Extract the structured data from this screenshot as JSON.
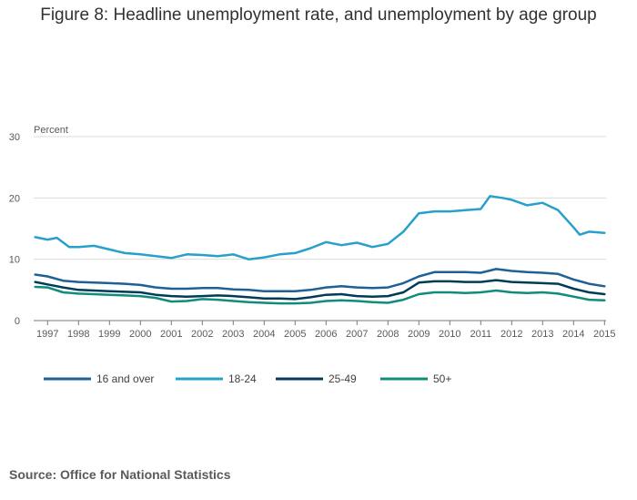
{
  "title": "Figure 8: Headline unemployment rate, and unemployment by age group",
  "source": "Source: Office for National Statistics",
  "chart_data": {
    "type": "line",
    "title": "Figure 8: Headline unemployment rate, and unemployment by age group",
    "ylabel": "Percent",
    "xlabel": "",
    "ylim": [
      0,
      30
    ],
    "xlim": [
      1996.55,
      2015.05
    ],
    "yticks": [
      0,
      10,
      20,
      30
    ],
    "xticks": [
      "1997",
      "1998",
      "1999",
      "2000",
      "2001",
      "2002",
      "2003",
      "2004",
      "2005",
      "2006",
      "2007",
      "2008",
      "2009",
      "2010",
      "2011",
      "2012",
      "2013",
      "2014",
      "2015"
    ],
    "grid": "horizontal",
    "legend_position": "bottom-left",
    "series": [
      {
        "name": "16 and over",
        "color": "#206095",
        "x": [
          1996.6,
          1997.0,
          1997.5,
          1998.0,
          1998.5,
          1999.0,
          1999.5,
          2000.0,
          2000.5,
          2001.0,
          2001.5,
          2002.0,
          2002.5,
          2003.0,
          2003.5,
          2004.0,
          2004.5,
          2005.0,
          2005.5,
          2006.0,
          2006.5,
          2007.0,
          2007.5,
          2008.0,
          2008.5,
          2009.0,
          2009.5,
          2010.0,
          2010.5,
          2011.0,
          2011.5,
          2012.0,
          2012.5,
          2013.0,
          2013.5,
          2014.0,
          2014.5,
          2015.0
        ],
        "values": [
          7.5,
          7.2,
          6.5,
          6.3,
          6.2,
          6.1,
          6.0,
          5.8,
          5.4,
          5.2,
          5.2,
          5.3,
          5.3,
          5.1,
          5.0,
          4.8,
          4.8,
          4.8,
          5.0,
          5.4,
          5.6,
          5.4,
          5.3,
          5.4,
          6.1,
          7.2,
          7.9,
          7.9,
          7.9,
          7.8,
          8.4,
          8.1,
          7.9,
          7.8,
          7.6,
          6.7,
          6.0,
          5.6
        ]
      },
      {
        "name": "18-24",
        "color": "#27a0cc",
        "x": [
          1996.6,
          1997.0,
          1997.3,
          1997.7,
          1998.0,
          1998.5,
          1999.0,
          1999.5,
          2000.0,
          2000.5,
          2001.0,
          2001.5,
          2002.0,
          2002.5,
          2003.0,
          2003.5,
          2004.0,
          2004.5,
          2005.0,
          2005.5,
          2006.0,
          2006.5,
          2007.0,
          2007.5,
          2008.0,
          2008.5,
          2009.0,
          2009.5,
          2010.0,
          2010.5,
          2011.0,
          2011.3,
          2011.7,
          2012.0,
          2012.5,
          2013.0,
          2013.5,
          2014.0,
          2014.2,
          2014.5,
          2015.0
        ],
        "values": [
          13.6,
          13.2,
          13.5,
          12.0,
          12.0,
          12.2,
          11.6,
          11.0,
          10.8,
          10.5,
          10.2,
          10.8,
          10.7,
          10.5,
          10.8,
          10.0,
          10.3,
          10.8,
          11.0,
          11.8,
          12.8,
          12.3,
          12.7,
          12.0,
          12.5,
          14.5,
          17.5,
          17.8,
          17.8,
          18.0,
          18.2,
          20.3,
          20.0,
          19.7,
          18.8,
          19.2,
          18.0,
          15.2,
          14.0,
          14.5,
          14.3
        ]
      },
      {
        "name": "25-49",
        "color": "#003c57",
        "x": [
          1996.6,
          1997.0,
          1997.5,
          1998.0,
          1998.5,
          1999.0,
          1999.5,
          2000.0,
          2000.5,
          2001.0,
          2001.5,
          2002.0,
          2002.5,
          2003.0,
          2003.5,
          2004.0,
          2004.5,
          2005.0,
          2005.5,
          2006.0,
          2006.5,
          2007.0,
          2007.5,
          2008.0,
          2008.5,
          2009.0,
          2009.5,
          2010.0,
          2010.5,
          2011.0,
          2011.5,
          2012.0,
          2012.5,
          2013.0,
          2013.5,
          2014.0,
          2014.5,
          2015.0
        ],
        "values": [
          6.3,
          5.9,
          5.4,
          5.0,
          4.9,
          4.8,
          4.7,
          4.6,
          4.2,
          4.0,
          3.9,
          4.0,
          4.1,
          4.0,
          3.8,
          3.6,
          3.6,
          3.5,
          3.8,
          4.2,
          4.3,
          4.0,
          3.9,
          4.0,
          4.6,
          6.2,
          6.4,
          6.4,
          6.3,
          6.3,
          6.6,
          6.3,
          6.2,
          6.1,
          6.0,
          5.2,
          4.6,
          4.3
        ]
      },
      {
        "name": "50+",
        "color": "#118c7b",
        "x": [
          1996.6,
          1997.0,
          1997.5,
          1998.0,
          1998.5,
          1999.0,
          1999.5,
          2000.0,
          2000.5,
          2001.0,
          2001.5,
          2002.0,
          2002.5,
          2003.0,
          2003.5,
          2004.0,
          2004.5,
          2005.0,
          2005.5,
          2006.0,
          2006.5,
          2007.0,
          2007.5,
          2008.0,
          2008.5,
          2009.0,
          2009.5,
          2010.0,
          2010.5,
          2011.0,
          2011.5,
          2012.0,
          2012.5,
          2013.0,
          2013.5,
          2014.0,
          2014.5,
          2015.0
        ],
        "values": [
          5.5,
          5.4,
          4.6,
          4.4,
          4.3,
          4.2,
          4.1,
          4.0,
          3.7,
          3.1,
          3.2,
          3.5,
          3.4,
          3.2,
          3.0,
          2.9,
          2.8,
          2.8,
          2.9,
          3.2,
          3.3,
          3.2,
          3.0,
          2.9,
          3.4,
          4.3,
          4.6,
          4.6,
          4.5,
          4.6,
          4.9,
          4.6,
          4.5,
          4.6,
          4.4,
          3.9,
          3.4,
          3.3
        ]
      }
    ]
  }
}
